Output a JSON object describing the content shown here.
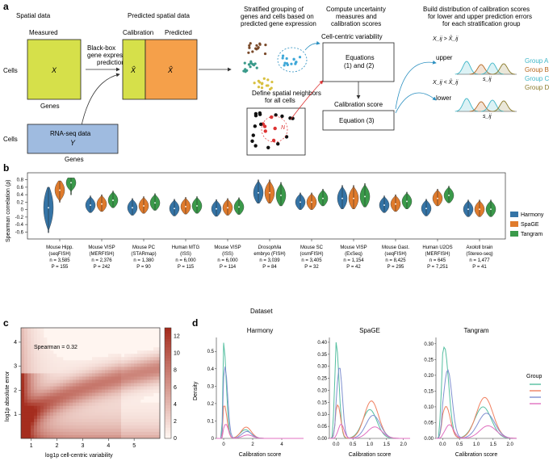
{
  "panel_a": {
    "label": "a",
    "spatial_data": "Spatial data",
    "measured": "Measured",
    "matrix_x": "X",
    "cells": "Cells",
    "genes": "Genes",
    "blackbox": [
      "Black-box",
      "gene expression",
      "prediction"
    ],
    "predicted_spatial": "Predicted spatial data",
    "calibration": "Calibration",
    "predicted": "Predicted",
    "xhat": "X̂",
    "rnaseq": "RNA-seq data",
    "matrix_y": "Y",
    "cells2": "Cells",
    "genes2": "Genes",
    "stratified": [
      "Stratified grouping of",
      "genes and cells based on",
      "predicted gene expression"
    ],
    "define_neighbors": [
      "Define spatial neighbors",
      "for all cells"
    ],
    "neighbor_n": "N",
    "compute": [
      "Compute uncertainty",
      "measures and",
      "calibration scores"
    ],
    "cell_centric": "Cell-centric variability",
    "equations12": [
      "Equations",
      "(1) and (2)"
    ],
    "calib_score": "Calibration score",
    "equation3": "Equation (3)",
    "build": [
      "Build distribution of calibration scores",
      "for lower and upper prediction errors",
      "for each stratification group"
    ],
    "upper_cond": "X_ij > X̂_ij",
    "upper": "upper",
    "lower_cond": "X_ij < X̂_ij",
    "lower": "lower",
    "sij": "s_ij",
    "groups": [
      {
        "name": "Group A",
        "color": "#3fb6c8"
      },
      {
        "name": "Group B",
        "color": "#b5651d"
      },
      {
        "name": "Group C",
        "color": "#3fb6c8"
      },
      {
        "name": "Group D",
        "color": "#8a7a2a"
      }
    ]
  },
  "panel_b": {
    "label": "b",
    "ylabel": "Spearman correlation (ρ)",
    "xlabel": "Dataset",
    "legend": [
      {
        "name": "Harmony",
        "color": "#3574a6"
      },
      {
        "name": "SpaGE",
        "color": "#e07b2c"
      },
      {
        "name": "Tangram",
        "color": "#3a9a4a"
      }
    ]
  },
  "chart_data": [
    {
      "type": "violin",
      "ylim": [
        -0.7,
        0.9
      ],
      "yticks": [
        -0.6,
        -0.4,
        -0.2,
        0,
        0.2,
        0.4,
        0.6,
        0.8
      ],
      "categories": [
        {
          "name": [
            "Mouse Hipp.",
            "(seqFISH)"
          ],
          "n": "n = 3,585",
          "p": "P = 155",
          "medians": [
            0.05,
            0.52,
            0.72
          ]
        },
        {
          "name": [
            "Mouse VISP",
            "(MERFISH)"
          ],
          "n": "n = 2,376",
          "p": "P = 242",
          "medians": [
            0.12,
            0.15,
            0.25
          ]
        },
        {
          "name": [
            "Mouse PC",
            "(STARmap)"
          ],
          "n": "n = 1,380",
          "p": "P = 90",
          "medians": [
            0.05,
            0.1,
            0.18
          ]
        },
        {
          "name": [
            "Human MTG",
            "(ISS)"
          ],
          "n": "n = 6,000",
          "p": "P = 115",
          "medians": [
            0.03,
            0.08,
            0.1
          ]
        },
        {
          "name": [
            "Mouse VISP",
            "(ISS)"
          ],
          "n": "n = 6,000",
          "p": "P = 114",
          "medians": [
            0.02,
            0.05,
            0.07
          ]
        },
        {
          "name": [
            "Drosophila",
            "embryo (FISH)"
          ],
          "n": "n = 3,039",
          "p": "P = 84",
          "medians": [
            0.45,
            0.45,
            0.38
          ]
        },
        {
          "name": [
            "Mouse SC",
            "(osmFISH)"
          ],
          "n": "n = 3,405",
          "p": "P = 32",
          "medians": [
            0.2,
            0.2,
            0.3
          ]
        },
        {
          "name": [
            "Mouse VISP",
            "(ExSeq)"
          ],
          "n": "n = 1,154",
          "p": "P = 42",
          "medians": [
            0.3,
            0.3,
            0.35
          ]
        },
        {
          "name": [
            "Mouse Gast.",
            "(seqFISH)"
          ],
          "n": "n = 8,425",
          "p": "P = 295",
          "medians": [
            0.12,
            0.15,
            0.22
          ]
        },
        {
          "name": [
            "Human U2OS",
            "(MERFISH)"
          ],
          "n": "n = 645",
          "p": "P = 7,251",
          "medians": [
            0.03,
            0.3,
            0.38
          ]
        },
        {
          "name": [
            "Axolotl brain",
            "(Stereo-seq)"
          ],
          "n": "n = 1,477",
          "p": "P = 41",
          "medians": [
            0.01,
            0.01,
            0.01
          ]
        }
      ]
    },
    {
      "type": "heatmap",
      "label": "c",
      "xlabel": "log1p cell-centric variability",
      "ylabel": "log1p absolute error",
      "annotation": "Spearman = 0.32",
      "xticks": [
        1,
        2,
        3,
        4,
        5
      ],
      "yticks": [
        1,
        2,
        3,
        4
      ],
      "colorbar_ticks": [
        0,
        2,
        4,
        6,
        8,
        10,
        12
      ]
    },
    {
      "type": "line",
      "label": "d",
      "ylabel": "Density",
      "xlabel": "Calibration score",
      "legend_title": "Group",
      "group_colors": [
        "#55bfa0",
        "#f08060",
        "#8090d0",
        "#e070c0"
      ],
      "subplots": [
        {
          "title": "Harmony",
          "xticks": [
            0,
            2,
            4
          ],
          "yticks": [
            0,
            0.1,
            0.2,
            0.3,
            0.4,
            0.5
          ]
        },
        {
          "title": "SpaGE",
          "xticks": [
            0,
            0.5,
            1.0,
            1.5,
            2.0
          ],
          "yticks": [
            0,
            0.05,
            0.1,
            0.15,
            0.2,
            0.25,
            0.3,
            0.35,
            0.4
          ]
        },
        {
          "title": "Tangram",
          "xticks": [
            0,
            0.5,
            1.0,
            1.5,
            2.0
          ],
          "yticks": [
            0,
            0.05,
            0.1,
            0.15,
            0.2,
            0.25,
            0.3
          ]
        }
      ]
    }
  ]
}
